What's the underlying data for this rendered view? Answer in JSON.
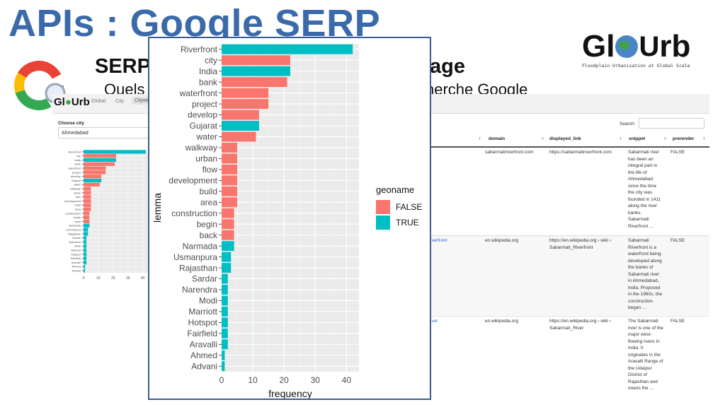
{
  "slide": {
    "title": "APIs : Google SERP",
    "subtitle_visible": "SERP",
    "subtitle_right": "age",
    "line2_left": "Quels",
    "line2_right": "cherche Google",
    "brand": {
      "left": "Gl",
      "right": "rb",
      "tagline": "Floodplain Urbanisation at Global Scale"
    }
  },
  "app": {
    "logo_left": "Gl",
    "logo_right": "rb",
    "tabs": [
      "Global",
      "City",
      "Citywe"
    ],
    "choose_city_label": "Choose city",
    "city_value": "Ahmedabad",
    "search_label": "Search:",
    "columns": [
      "domain",
      "displayed_link",
      "snippet",
      "prerender"
    ],
    "rows": [
      {
        "link_fragment": "",
        "domain": "sabarmatiriverfront.com",
        "displayed_link": "https://sabarmatiriverfront.com",
        "snippet": "Sabarmati river\nhas been an\nintegral part in\nthe life of\nAhmedabad\nsince the time\nthe city was\nfounded in 1411\nalong the river\nbanks.\nSabarmati\nRiverfront ...",
        "prerender": "FALSE"
      },
      {
        "link_fragment": "iverfront",
        "domain": "en.wikipedia.org",
        "displayed_link": "https://en.wikipedia.org › wiki ›\nSabarmati_Riverfront",
        "snippet": "Sabarmati\nRiverfront is a\nwaterfront being\ndeveloped along\nthe banks of\nSabarmati river\nin Ahmedabad,\nIndia. Proposed\nin the 1960s, the\nconstruction\nbegan ...",
        "prerender": "FALSE"
      },
      {
        "link_fragment": "iver",
        "domain": "en.wikipedia.org",
        "displayed_link": "https://en.wikipedia.org › wiki ›\nSabarmati_River",
        "snippet": "The Sabarmati\nriver is one of the\nmajor west-\nflowing rivers in\nIndia. It\noriginates in the\nAravalli Range of\nthe Udaipur\nDistrict of\nRajasthan and\nmeets the ...",
        "prerender": "FALSE"
      }
    ]
  },
  "chart_data": {
    "type": "bar",
    "orientation": "horizontal",
    "xlabel": "frequency",
    "ylabel": "lemma",
    "xlim": [
      0,
      44
    ],
    "xticks": [
      0,
      10,
      20,
      30,
      40
    ],
    "grid": true,
    "legend": {
      "title": "geoname",
      "position": "right",
      "entries": [
        "FALSE",
        "TRUE"
      ]
    },
    "colors": {
      "FALSE": "#F8766D",
      "TRUE": "#00BFC4"
    },
    "categories": [
      "Riverfront",
      "city",
      "India",
      "bank",
      "waterfront",
      "project",
      "develop",
      "Gujarat",
      "water",
      "walkway",
      "urban",
      "flow",
      "development",
      "build",
      "area",
      "construction",
      "begin",
      "back",
      "Narmada",
      "Usmanpura",
      "Rajasthan",
      "Sardar",
      "Narendra",
      "Modi",
      "Marriott",
      "Hotspot",
      "Fairfield",
      "Aravalli",
      "Ahmed",
      "Advani"
    ],
    "values": [
      42,
      22,
      22,
      21,
      15,
      15,
      12,
      12,
      11,
      5,
      5,
      5,
      5,
      5,
      5,
      4,
      4,
      4,
      4,
      3,
      3,
      2,
      2,
      2,
      2,
      2,
      2,
      2,
      1,
      1
    ],
    "geoname": [
      "TRUE",
      "FALSE",
      "TRUE",
      "FALSE",
      "FALSE",
      "FALSE",
      "FALSE",
      "TRUE",
      "FALSE",
      "FALSE",
      "FALSE",
      "FALSE",
      "FALSE",
      "FALSE",
      "FALSE",
      "FALSE",
      "FALSE",
      "FALSE",
      "TRUE",
      "TRUE",
      "TRUE",
      "TRUE",
      "TRUE",
      "TRUE",
      "TRUE",
      "TRUE",
      "TRUE",
      "TRUE",
      "TRUE",
      "TRUE"
    ]
  }
}
